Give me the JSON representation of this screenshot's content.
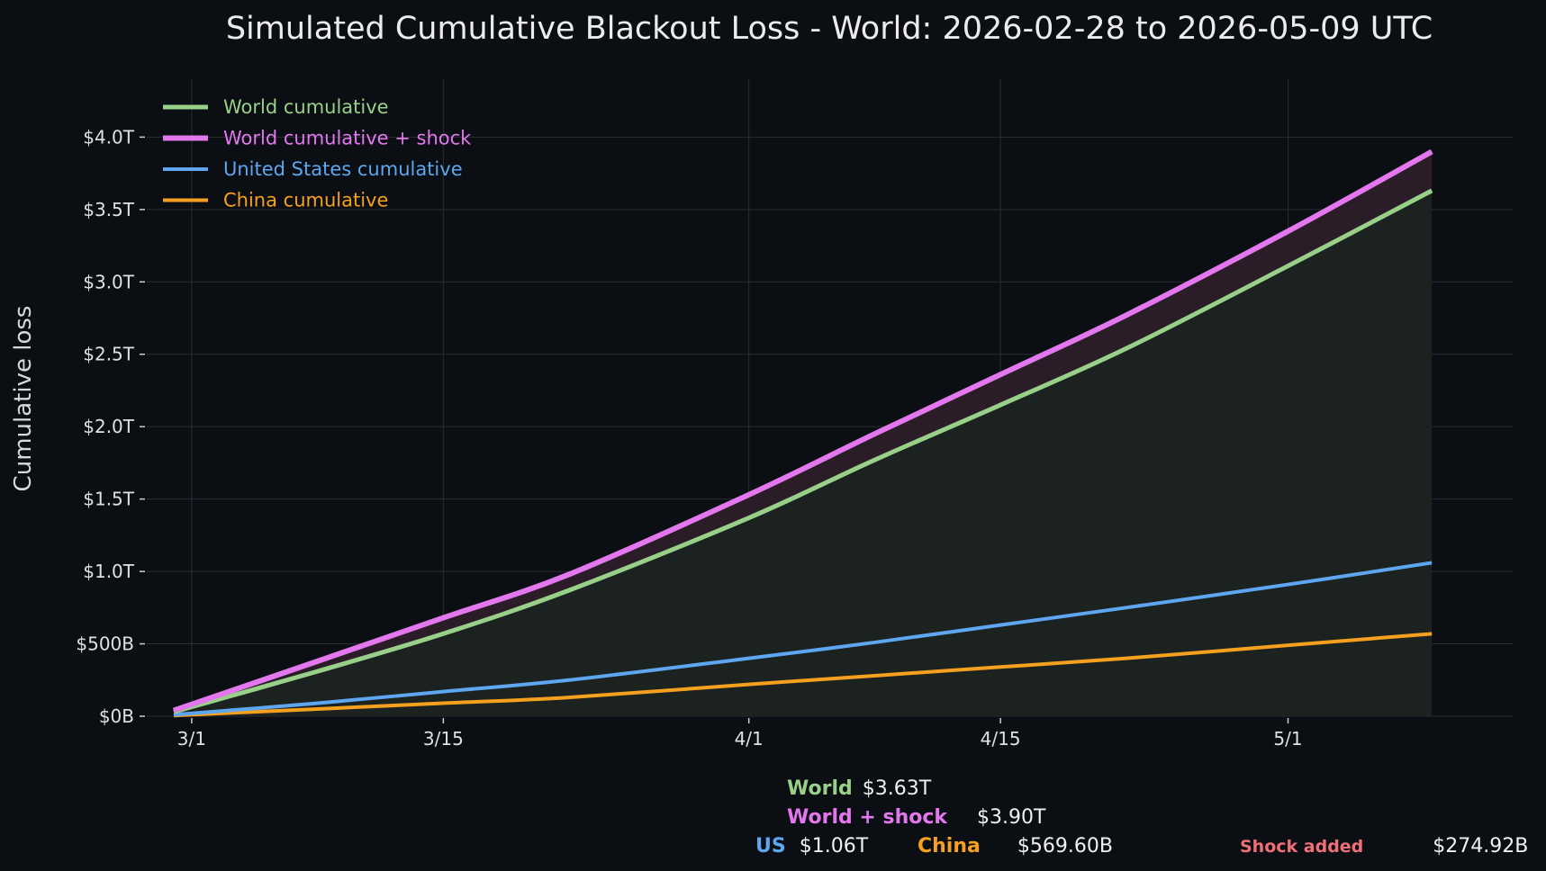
{
  "chart_data": {
    "type": "line",
    "title": "Simulated Cumulative Blackout Loss - World: 2026-02-28 to 2026-05-09 UTC",
    "ylabel": "Cumulative loss",
    "xlabel": "",
    "x_range": [
      "2026-02-28",
      "2026-05-09"
    ],
    "ylim": [
      0,
      4.4
    ],
    "y_unit": "trillions USD",
    "grid": true,
    "legend_placement": "top-left",
    "x_ticks": [
      {
        "date": "2026-03-01",
        "label": "3/1"
      },
      {
        "date": "2026-03-15",
        "label": "3/15"
      },
      {
        "date": "2026-04-01",
        "label": "4/1"
      },
      {
        "date": "2026-04-15",
        "label": "4/15"
      },
      {
        "date": "2026-05-01",
        "label": "5/1"
      }
    ],
    "y_ticks": [
      {
        "value": 0,
        "label": "$0B"
      },
      {
        "value": 0.5,
        "label": "$500B"
      },
      {
        "value": 1.0,
        "label": "$1.0T"
      },
      {
        "value": 1.5,
        "label": "$1.5T"
      },
      {
        "value": 2.0,
        "label": "$2.0T"
      },
      {
        "value": 2.5,
        "label": "$2.5T"
      },
      {
        "value": 3.0,
        "label": "$3.0T"
      },
      {
        "value": 3.5,
        "label": "$3.5T"
      },
      {
        "value": 4.0,
        "label": "$4.0T"
      }
    ],
    "x": [
      "2026-02-28",
      "2026-03-08",
      "2026-03-15",
      "2026-03-22",
      "2026-04-01",
      "2026-04-08",
      "2026-04-15",
      "2026-04-22",
      "2026-05-01",
      "2026-05-09"
    ],
    "series": [
      {
        "name": "World cumulative",
        "color": "#98d08a",
        "width": 5,
        "values": [
          0.03,
          0.31,
          0.57,
          0.87,
          1.37,
          1.77,
          2.15,
          2.54,
          3.11,
          3.63
        ]
      },
      {
        "name": "World cumulative + shock",
        "color": "#e277ee",
        "width": 6,
        "values": [
          0.04,
          0.38,
          0.68,
          0.98,
          1.53,
          1.95,
          2.36,
          2.77,
          3.35,
          3.9
        ]
      },
      {
        "name": "United States cumulative",
        "color": "#5ea6f0",
        "width": 4,
        "values": [
          0.01,
          0.09,
          0.17,
          0.25,
          0.4,
          0.51,
          0.63,
          0.75,
          0.91,
          1.06
        ]
      },
      {
        "name": "China cumulative",
        "color": "#f5a01e",
        "width": 4,
        "values": [
          0.005,
          0.05,
          0.09,
          0.13,
          0.22,
          0.28,
          0.34,
          0.4,
          0.49,
          0.5696
        ]
      }
    ],
    "summary": {
      "world": {
        "label": "World",
        "value": "$3.63T"
      },
      "world_shock": {
        "label": "World + shock",
        "value": "$3.90T"
      },
      "us": {
        "label": "US",
        "value": "$1.06T"
      },
      "china": {
        "label": "China",
        "value": "$569.60B"
      },
      "shock": {
        "label": "Shock added",
        "value": "$274.92B"
      }
    }
  },
  "colors": {
    "background": "#0b0e12",
    "grid": "#2a2e34",
    "axis": "#cfcfcf",
    "shock_label": "#f07078",
    "world_fill": "#1b2220",
    "shock_fill": "#2f1f2a"
  }
}
